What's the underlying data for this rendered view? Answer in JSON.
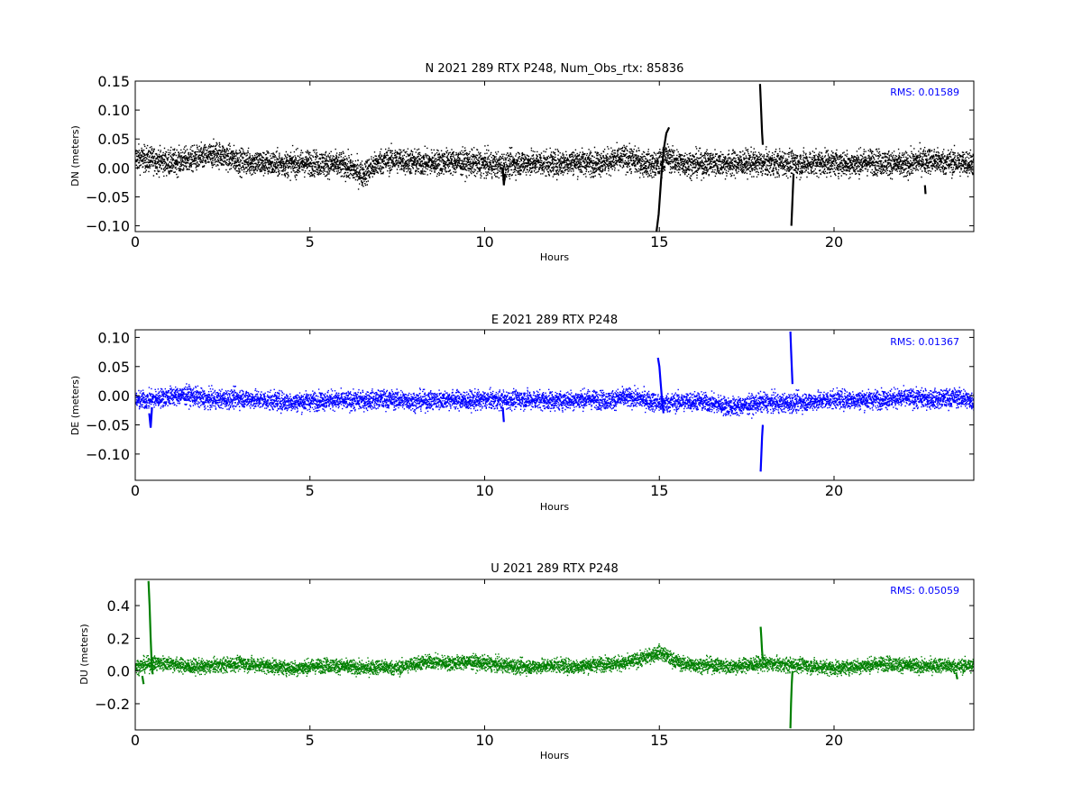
{
  "chart_data": [
    {
      "type": "scatter",
      "title": "N 2021 289 RTX  P248, Num_Obs_rtx: 85836",
      "xlabel": "Hours",
      "ylabel": "DN (meters)",
      "xlim": [
        0,
        24
      ],
      "ylim": [
        -0.11,
        0.15
      ],
      "xticks": [
        0,
        5,
        10,
        15,
        20
      ],
      "xtick_labels": [
        "0",
        "5",
        "10",
        "15",
        "20"
      ],
      "yticks": [
        -0.1,
        -0.05,
        0.0,
        0.05,
        0.1,
        0.15
      ],
      "ytick_labels": [
        "−0.10",
        "−0.05",
        "0.00",
        "0.05",
        "0.10",
        "0.15"
      ],
      "grid": false,
      "color": "#000000",
      "annotation": "RMS:  0.01589",
      "annotation_color": "#0000ff",
      "series": [
        {
          "noise": 0.011,
          "x": [
            0,
            0.5,
            1,
            1.5,
            2,
            2.3,
            2.6,
            3,
            3.5,
            4,
            4.5,
            5,
            5.5,
            6,
            6.5,
            7,
            7.5,
            8,
            8.5,
            9,
            9.5,
            10,
            10.5,
            11,
            11.5,
            12,
            12.5,
            13,
            13.5,
            14,
            14.5,
            14.9,
            15.2,
            15.5,
            16,
            16.5,
            17,
            17.5,
            18,
            18.5,
            19,
            19.5,
            20,
            20.5,
            21,
            21.5,
            22,
            22.5,
            23,
            23.5,
            24
          ],
          "y": [
            0.018,
            0.015,
            0.01,
            0.015,
            0.02,
            0.025,
            0.02,
            0.012,
            0.01,
            0.008,
            0.008,
            0.01,
            0.008,
            0.005,
            -0.01,
            0.012,
            0.015,
            0.01,
            0.01,
            0.012,
            0.01,
            0.008,
            0.005,
            0.01,
            0.01,
            0.008,
            0.012,
            0.01,
            0.012,
            0.018,
            0.01,
            0.005,
            0.02,
            0.01,
            0.008,
            0.01,
            0.008,
            0.01,
            0.008,
            0.01,
            0.008,
            0.01,
            0.01,
            0.008,
            0.012,
            0.01,
            0.005,
            0.015,
            0.012,
            0.01,
            0.01
          ]
        },
        {
          "noise": 0,
          "x": [
            14.92,
            14.98,
            15.05,
            15.12,
            15.2,
            15.28
          ],
          "y": [
            -0.11,
            -0.08,
            -0.02,
            0.03,
            0.06,
            0.07
          ]
        },
        {
          "noise": 0,
          "x": [
            17.88,
            17.9,
            17.92,
            17.94,
            17.96
          ],
          "y": [
            0.145,
            0.12,
            0.09,
            0.06,
            0.04
          ]
        },
        {
          "noise": 0,
          "x": [
            18.78,
            18.8,
            18.82,
            18.84
          ],
          "y": [
            -0.1,
            -0.07,
            -0.04,
            -0.01
          ]
        },
        {
          "noise": 0,
          "x": [
            10.52,
            10.55,
            10.58
          ],
          "y": [
            0.0,
            -0.03,
            -0.01
          ]
        },
        {
          "noise": 0,
          "x": [
            22.6,
            22.62
          ],
          "y": [
            -0.03,
            -0.045
          ]
        }
      ]
    },
    {
      "type": "scatter",
      "title": "E 2021 289 RTX  P248",
      "xlabel": "Hours",
      "ylabel": "DE (meters)",
      "xlim": [
        0,
        24
      ],
      "ylim": [
        -0.145,
        0.113
      ],
      "xticks": [
        0,
        5,
        10,
        15,
        20
      ],
      "xtick_labels": [
        "0",
        "5",
        "10",
        "15",
        "20"
      ],
      "yticks": [
        -0.1,
        -0.05,
        0.0,
        0.05,
        0.1
      ],
      "ytick_labels": [
        "−0.10",
        "−0.05",
        "0.00",
        "0.05",
        "0.10"
      ],
      "grid": false,
      "color": "#0000ff",
      "annotation": "RMS:  0.01367",
      "annotation_color": "#0000ff",
      "series": [
        {
          "noise": 0.008,
          "x": [
            0,
            0.5,
            1,
            1.5,
            2,
            2.5,
            3,
            3.5,
            4,
            4.5,
            5,
            5.5,
            6,
            6.5,
            7,
            7.5,
            8,
            8.5,
            9,
            9.5,
            10,
            10.5,
            11,
            11.5,
            12,
            12.5,
            13,
            13.5,
            14,
            14.5,
            15,
            15.5,
            16,
            16.5,
            17,
            17.5,
            18,
            18.5,
            19,
            19.5,
            20,
            20.5,
            21,
            21.5,
            22,
            22.5,
            23,
            23.5,
            24
          ],
          "y": [
            -0.008,
            -0.005,
            0.0,
            0.002,
            -0.005,
            -0.005,
            -0.003,
            -0.006,
            -0.008,
            -0.01,
            -0.008,
            -0.006,
            -0.008,
            -0.007,
            -0.005,
            -0.006,
            -0.008,
            -0.007,
            -0.005,
            -0.008,
            -0.006,
            -0.007,
            -0.005,
            -0.006,
            -0.008,
            -0.006,
            -0.005,
            -0.007,
            -0.002,
            -0.005,
            -0.012,
            -0.01,
            -0.008,
            -0.012,
            -0.018,
            -0.015,
            -0.01,
            -0.012,
            -0.01,
            -0.008,
            -0.005,
            -0.006,
            -0.006,
            -0.004,
            -0.003,
            -0.004,
            -0.005,
            -0.002,
            -0.008
          ]
        },
        {
          "noise": 0,
          "x": [
            14.96,
            15.0,
            15.04,
            15.08,
            15.12
          ],
          "y": [
            0.065,
            0.05,
            0.02,
            -0.01,
            -0.03
          ]
        },
        {
          "noise": 0,
          "x": [
            17.9,
            17.92,
            17.94,
            17.96
          ],
          "y": [
            -0.13,
            -0.1,
            -0.07,
            -0.05
          ]
        },
        {
          "noise": 0,
          "x": [
            18.75,
            18.77,
            18.79,
            18.81
          ],
          "y": [
            0.11,
            0.08,
            0.05,
            0.02
          ]
        },
        {
          "noise": 0,
          "x": [
            0.4,
            0.44,
            0.48
          ],
          "y": [
            -0.03,
            -0.055,
            -0.02
          ]
        },
        {
          "noise": 0,
          "x": [
            10.52,
            10.55
          ],
          "y": [
            -0.02,
            -0.045
          ]
        }
      ]
    },
    {
      "type": "scatter",
      "title": "U 2021 289 RTX  P248",
      "xlabel": "Hours",
      "ylabel": "DU (meters)",
      "xlim": [
        0,
        24
      ],
      "ylim": [
        -0.36,
        0.56
      ],
      "xticks": [
        0,
        5,
        10,
        15,
        20
      ],
      "xtick_labels": [
        "0",
        "5",
        "10",
        "15",
        "20"
      ],
      "yticks": [
        -0.2,
        0.0,
        0.2,
        0.4
      ],
      "ytick_labels": [
        "−0.2",
        "0.0",
        "0.2",
        "0.4"
      ],
      "grid": false,
      "color": "#008000",
      "annotation": "RMS:  0.05059",
      "annotation_color": "#0000ff",
      "series": [
        {
          "noise": 0.022,
          "x": [
            0,
            0.5,
            1,
            1.5,
            2,
            2.5,
            3,
            3.5,
            4,
            4.5,
            5,
            5.5,
            6,
            6.5,
            7,
            7.5,
            8,
            8.5,
            9,
            9.5,
            10,
            10.5,
            11,
            11.5,
            12,
            12.5,
            13,
            13.5,
            14,
            14.5,
            15,
            15.3,
            15.6,
            16,
            16.5,
            17,
            17.5,
            18,
            18.5,
            19,
            19.5,
            20,
            20.5,
            21,
            21.5,
            22,
            22.5,
            23,
            23.5,
            24
          ],
          "y": [
            0.03,
            0.05,
            0.05,
            0.03,
            0.03,
            0.04,
            0.05,
            0.04,
            0.03,
            0.02,
            0.03,
            0.04,
            0.03,
            0.02,
            0.03,
            0.02,
            0.05,
            0.06,
            0.05,
            0.06,
            0.05,
            0.04,
            0.03,
            0.03,
            0.04,
            0.03,
            0.04,
            0.05,
            0.05,
            0.08,
            0.12,
            0.08,
            0.05,
            0.04,
            0.04,
            0.03,
            0.04,
            0.05,
            0.04,
            0.04,
            0.03,
            0.02,
            0.03,
            0.04,
            0.05,
            0.04,
            0.03,
            0.04,
            0.03,
            0.04
          ]
        },
        {
          "noise": 0,
          "x": [
            0.38,
            0.41,
            0.44,
            0.47,
            0.5
          ],
          "y": [
            0.55,
            0.4,
            0.2,
            0.05,
            -0.02
          ]
        },
        {
          "noise": 0,
          "x": [
            17.9,
            17.92,
            17.94,
            17.96
          ],
          "y": [
            0.27,
            0.2,
            0.12,
            0.07
          ]
        },
        {
          "noise": 0,
          "x": [
            18.75,
            18.77,
            18.79,
            18.81
          ],
          "y": [
            -0.35,
            -0.2,
            -0.08,
            0.0
          ]
        },
        {
          "noise": 0,
          "x": [
            0.2,
            0.24
          ],
          "y": [
            -0.03,
            -0.08
          ]
        },
        {
          "noise": 0,
          "x": [
            23.5,
            23.53
          ],
          "y": [
            -0.02,
            -0.05
          ]
        }
      ]
    }
  ]
}
